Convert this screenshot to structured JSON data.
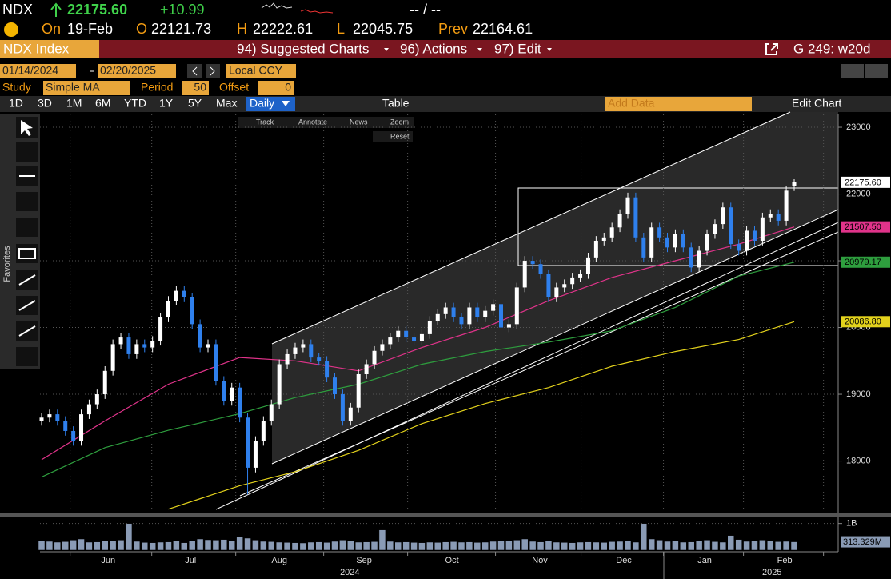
{
  "header": {
    "ticker": "NDX",
    "last": "22175.60",
    "change": "+10.99",
    "quote": "-- / --",
    "on": {
      "label": "On",
      "value": "19-Feb"
    },
    "open": {
      "label": "O",
      "value": "22121.73"
    },
    "high": {
      "label": "H",
      "value": "22222.61"
    },
    "low": {
      "label": "L",
      "value": "22045.75"
    },
    "prev": {
      "label": "Prev",
      "value": "22164.61"
    }
  },
  "toolbar": {
    "security": "NDX Index",
    "menus": [
      "94) Suggested Charts",
      "96) Actions",
      "97) Edit"
    ],
    "page": "G 249: w20d",
    "start_date": "01/14/2024",
    "end_date": "02/20/2025",
    "currency": "Local CCY",
    "study_label": "Study",
    "study": "Simple MA",
    "period_label": "Period",
    "period": "50",
    "offset_label": "Offset",
    "offset": "0",
    "ranges": [
      "1D",
      "3D",
      "1M",
      "6M",
      "YTD",
      "1Y",
      "5Y",
      "Max"
    ],
    "frequency": "Daily",
    "table": "Table",
    "add_data": "Add Data",
    "edit_chart": "Edit Chart",
    "chart_tools": [
      "Track",
      "Annotate",
      "News",
      "Zoom"
    ],
    "reset": "Reset",
    "favorites": "Favorites"
  },
  "chart_data": {
    "type": "candlestick",
    "up_color": "#ffffff",
    "down_color": "#2f80ed",
    "grid": true,
    "open": [
      18600,
      18650,
      18700,
      18600,
      18450,
      18300,
      18700,
      18850,
      19000,
      19350,
      19750,
      19850,
      19600,
      19750,
      19700,
      19800,
      20150,
      20400,
      20550,
      20450,
      20050,
      19700,
      19750,
      19200,
      18900,
      19100,
      18650,
      17900,
      18300,
      18600,
      18850,
      19450,
      19600,
      19700,
      19750,
      19550,
      19500,
      19250,
      19000,
      18600,
      18800,
      19300,
      19450,
      19650,
      19750,
      19850,
      19950,
      19850,
      19800,
      19900,
      20100,
      20200,
      20300,
      20150,
      20050,
      20300,
      20150,
      20250,
      20350,
      20000,
      20050,
      20600,
      21000,
      20950,
      20800,
      20450,
      20600,
      20650,
      20750,
      20800,
      21050,
      21300,
      21350,
      21500,
      21700,
      21950,
      21350,
      21050,
      21500,
      21350,
      21200,
      21400,
      21200,
      20900,
      21150,
      21400,
      21550,
      21800,
      21250,
      21150,
      21450,
      21300,
      21650,
      21700,
      21600,
      22121.73
    ],
    "high": [
      18720,
      18770,
      18770,
      18670,
      18520,
      18770,
      18920,
      19070,
      19420,
      19820,
      19920,
      19920,
      19820,
      19820,
      19870,
      20220,
      20470,
      20620,
      20620,
      20520,
      20120,
      19820,
      19820,
      19270,
      19170,
      19170,
      18720,
      18370,
      18670,
      18920,
      19520,
      19670,
      19770,
      19820,
      19820,
      19620,
      19570,
      19320,
      19070,
      18870,
      19370,
      19520,
      19720,
      19820,
      19920,
      20020,
      20020,
      19920,
      19970,
      20170,
      20270,
      20370,
      20370,
      20220,
      20370,
      20370,
      20320,
      20420,
      20420,
      20120,
      20670,
      21070,
      21070,
      21020,
      20870,
      20670,
      20720,
      20820,
      20870,
      21120,
      21370,
      21420,
      21570,
      21770,
      22020,
      22020,
      21420,
      21570,
      21570,
      21420,
      21470,
      21470,
      21270,
      21220,
      21470,
      21620,
      21870,
      21870,
      21320,
      21520,
      21520,
      21720,
      21770,
      21770,
      22120,
      22222.61
    ],
    "low": [
      18530,
      18580,
      18530,
      18380,
      18230,
      18230,
      18630,
      18780,
      18930,
      19280,
      19680,
      19530,
      19530,
      19630,
      19630,
      19730,
      20080,
      20330,
      20380,
      19980,
      19630,
      19630,
      19130,
      18830,
      18830,
      18580,
      17500,
      17830,
      18230,
      18530,
      18780,
      19380,
      19530,
      19630,
      19480,
      19430,
      19180,
      18930,
      18530,
      18530,
      18730,
      19230,
      19380,
      19580,
      19680,
      19780,
      19780,
      19730,
      19730,
      19830,
      20030,
      20130,
      20080,
      19980,
      19980,
      20080,
      20080,
      20180,
      19930,
      19930,
      19980,
      20530,
      20880,
      20730,
      20380,
      20380,
      20530,
      20580,
      20680,
      20730,
      20980,
      21230,
      21280,
      21430,
      21630,
      21280,
      20980,
      20980,
      21280,
      21130,
      21130,
      21130,
      20830,
      20830,
      21080,
      21330,
      21480,
      21180,
      21080,
      21080,
      21230,
      21230,
      21580,
      21530,
      21530,
      22045.75
    ],
    "close": [
      18650,
      18700,
      18600,
      18450,
      18300,
      18700,
      18850,
      19000,
      19350,
      19750,
      19850,
      19600,
      19750,
      19700,
      19800,
      20150,
      20400,
      20550,
      20450,
      20050,
      19700,
      19750,
      19200,
      18900,
      19100,
      18650,
      17900,
      18300,
      18600,
      18850,
      19450,
      19600,
      19700,
      19750,
      19550,
      19500,
      19250,
      19000,
      18600,
      18800,
      19300,
      19450,
      19650,
      19750,
      19850,
      19950,
      19850,
      19800,
      19900,
      20100,
      20200,
      20300,
      20150,
      20050,
      20300,
      20150,
      20250,
      20350,
      20000,
      20050,
      20600,
      21000,
      20950,
      20800,
      20450,
      20600,
      20650,
      20750,
      20800,
      21050,
      21300,
      21350,
      21500,
      21700,
      21950,
      21350,
      21050,
      21500,
      21350,
      21200,
      21400,
      21200,
      20900,
      21150,
      21400,
      21550,
      21800,
      21250,
      21150,
      21450,
      21300,
      21650,
      21700,
      21600,
      22050,
      22175.6
    ],
    "ylim": [
      17276,
      23192
    ],
    "yticks": [
      18000,
      19000,
      20000,
      21000,
      22000,
      23000
    ],
    "month_starts": [
      3.6,
      13.9,
      24.5,
      35.6,
      46.2,
      57.3,
      68.1,
      78.5,
      88.6,
      98.7
    ],
    "month_labels": [
      {
        "value": 8.4,
        "label": "Jun"
      },
      {
        "value": 18.8,
        "label": "Jul"
      },
      {
        "value": 30,
        "label": "Aug"
      },
      {
        "value": 40.7,
        "label": "Sep"
      },
      {
        "value": 51.8,
        "label": "Oct"
      },
      {
        "value": 62.9,
        "label": "Nov"
      },
      {
        "value": 73.5,
        "label": "Dec"
      },
      {
        "value": 83.7,
        "label": "Jan"
      },
      {
        "value": 93.8,
        "label": "Feb"
      }
    ],
    "year_labels": [
      {
        "value": 38.9,
        "label": "2024"
      },
      {
        "value": 92.2,
        "label": "2025"
      }
    ],
    "moving_averages": [
      {
        "color": "#e0338a",
        "x": [
          0,
          8,
          16,
          25,
          32,
          40,
          48,
          56,
          64,
          72,
          80,
          88,
          95
        ],
        "values": [
          18020,
          18600,
          19150,
          19550,
          19500,
          19350,
          19700,
          20000,
          20400,
          20750,
          21000,
          21250,
          21507.5
        ]
      },
      {
        "color": "#2e9e3e",
        "x": [
          0,
          8,
          16,
          25,
          32,
          40,
          48,
          56,
          64,
          72,
          80,
          88,
          95
        ],
        "values": [
          17760,
          18200,
          18460,
          18710,
          18950,
          19150,
          19450,
          19640,
          19780,
          19950,
          20300,
          20770,
          20979.17
        ]
      },
      {
        "color": "#e3d21c",
        "x": [
          16,
          25,
          32,
          40,
          48,
          56,
          64,
          72,
          80,
          88,
          95
        ],
        "values": [
          17280,
          17630,
          17840,
          18160,
          18560,
          18860,
          19100,
          19420,
          19640,
          19820,
          20086.8
        ]
      }
    ],
    "price_tags": [
      {
        "value": 22175.6,
        "label": "22175.60",
        "color": "#ffffff"
      },
      {
        "value": 21507.5,
        "label": "21507.50",
        "color": "#e0338a"
      },
      {
        "value": 20979.17,
        "label": "20979.17",
        "color": "#2e9e3e"
      },
      {
        "value": 20086.8,
        "label": "20086.80",
        "color": "#e3d21c"
      }
    ],
    "volume": {
      "color": "#8a9bb5",
      "ylim": [
        0,
        1200000000
      ],
      "yticks": [
        {
          "value": 1000000000,
          "label": "1B"
        }
      ],
      "last_tag": {
        "value": 313329000,
        "label": "313.329M"
      },
      "values": [
        350000000,
        330000000,
        300000000,
        320000000,
        380000000,
        420000000,
        300000000,
        310000000,
        340000000,
        360000000,
        380000000,
        1000000000,
        330000000,
        290000000,
        280000000,
        300000000,
        310000000,
        340000000,
        280000000,
        360000000,
        420000000,
        390000000,
        380000000,
        400000000,
        350000000,
        500000000,
        450000000,
        380000000,
        330000000,
        320000000,
        300000000,
        290000000,
        280000000,
        270000000,
        300000000,
        310000000,
        290000000,
        330000000,
        380000000,
        340000000,
        300000000,
        310000000,
        320000000,
        760000000,
        330000000,
        300000000,
        310000000,
        290000000,
        280000000,
        300000000,
        290000000,
        310000000,
        320000000,
        300000000,
        310000000,
        290000000,
        300000000,
        330000000,
        360000000,
        340000000,
        380000000,
        420000000,
        330000000,
        310000000,
        340000000,
        300000000,
        290000000,
        280000000,
        300000000,
        310000000,
        300000000,
        290000000,
        320000000,
        330000000,
        340000000,
        300000000,
        1000000000,
        420000000,
        380000000,
        330000000,
        340000000,
        300000000,
        310000000,
        360000000,
        380000000,
        320000000,
        300000000,
        550000000,
        400000000,
        330000000,
        360000000,
        380000000,
        340000000,
        320000000,
        330000000,
        313329000
      ]
    }
  }
}
